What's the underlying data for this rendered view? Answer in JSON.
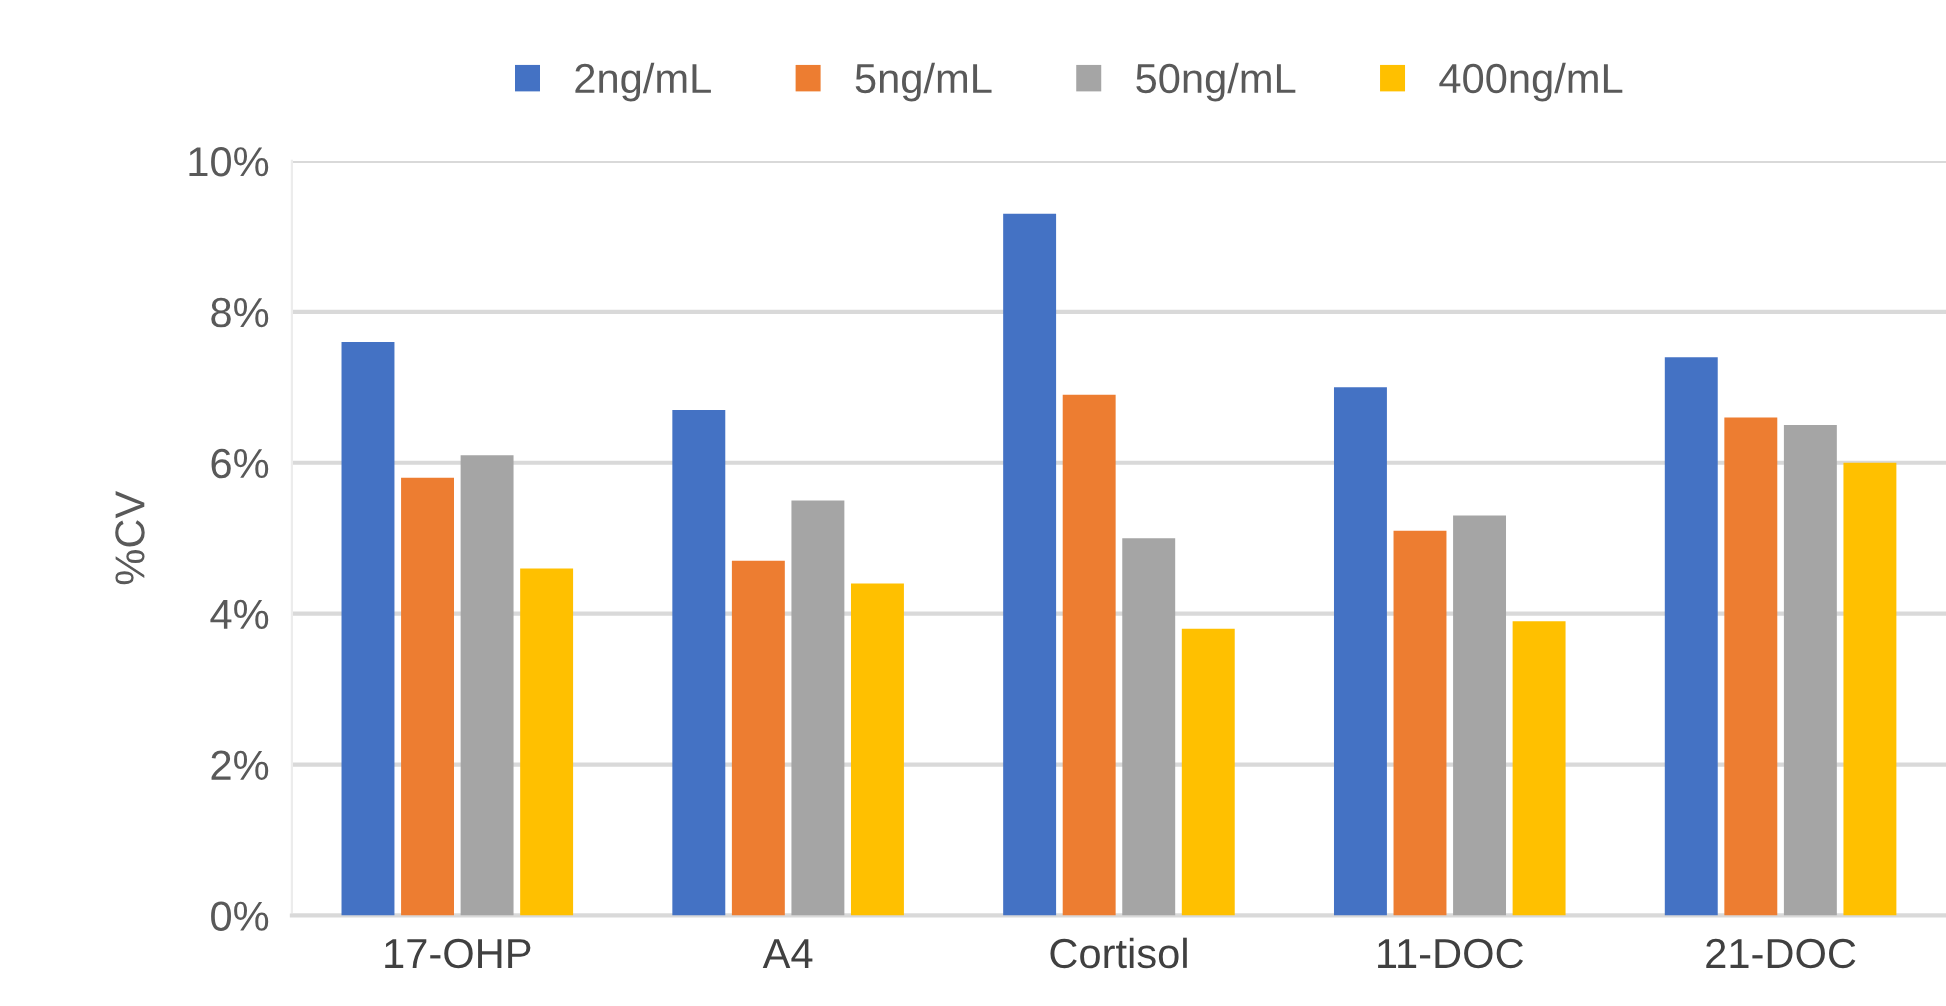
{
  "chart_data": {
    "type": "bar",
    "ylabel": "%CV",
    "categories": [
      "17-OHP",
      "A4",
      "Cortisol",
      "11-DOC",
      "21-DOC"
    ],
    "series": [
      {
        "name": "2ng/mL",
        "color": "#4472c4",
        "values": [
          7.6,
          6.7,
          9.3,
          7.0,
          7.4
        ]
      },
      {
        "name": "5ng/mL",
        "color": "#ed7d31",
        "values": [
          5.8,
          4.7,
          6.9,
          5.1,
          6.6
        ]
      },
      {
        "name": "50ng/mL",
        "color": "#a5a5a5",
        "values": [
          6.1,
          5.5,
          5.0,
          5.3,
          6.5
        ]
      },
      {
        "name": "400ng/mL",
        "color": "#ffc000",
        "values": [
          4.6,
          4.4,
          3.8,
          3.9,
          6.0
        ]
      }
    ],
    "ylim": [
      0,
      10
    ],
    "yticks": [
      {
        "value": 0,
        "label": "0%"
      },
      {
        "value": 2,
        "label": "2%"
      },
      {
        "value": 4,
        "label": "4%"
      },
      {
        "value": 6,
        "label": "6%"
      },
      {
        "value": 8,
        "label": "8%"
      },
      {
        "value": 10,
        "label": "10%"
      }
    ],
    "grid": "y",
    "legend": "top"
  }
}
